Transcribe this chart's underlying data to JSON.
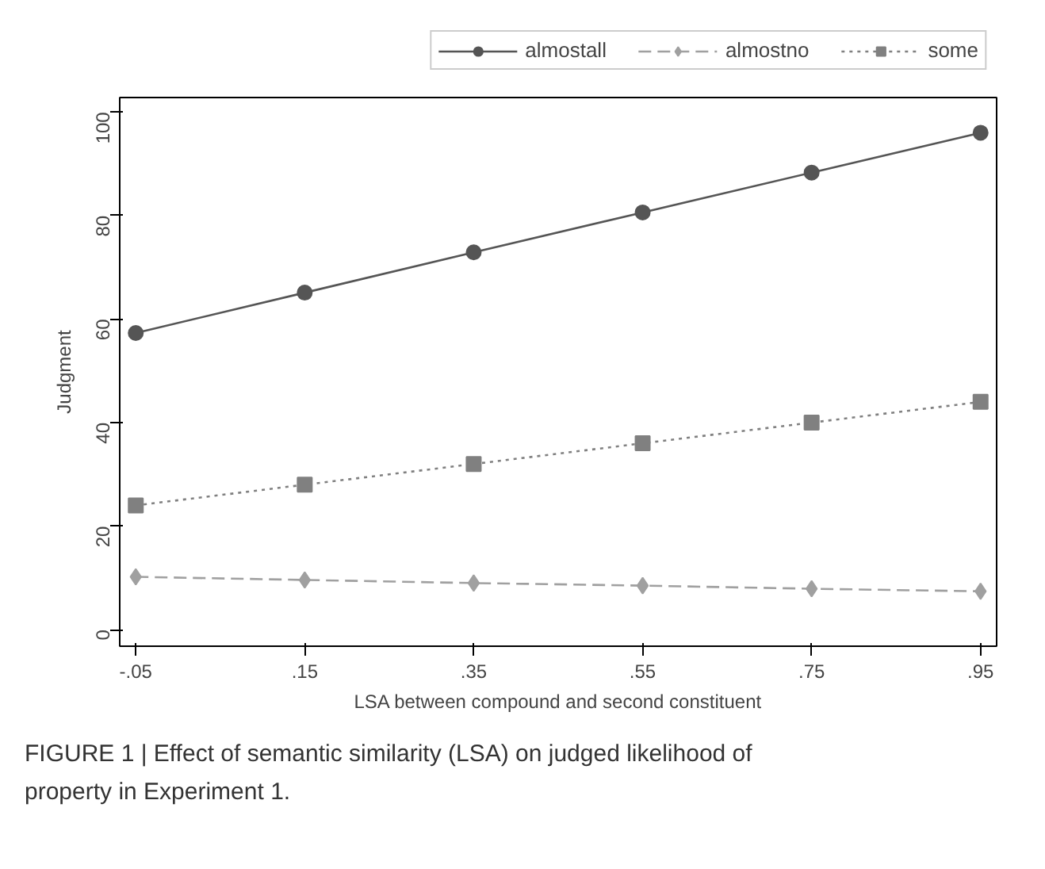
{
  "chart_data": {
    "type": "line",
    "xlabel": "LSA between compound and second constituent",
    "ylabel": "Judgment",
    "x": [
      -0.05,
      0.15,
      0.35,
      0.55,
      0.75,
      0.95
    ],
    "series": [
      {
        "name": "almostall",
        "color": "#555555",
        "values": [
          57.3,
          65.1,
          72.9,
          80.6,
          88.3,
          96.0
        ],
        "marker": "circle",
        "line_style": "solid"
      },
      {
        "name": "almostno",
        "color": "#a0a0a0",
        "values": [
          10.2,
          9.6,
          9.0,
          8.5,
          7.9,
          7.4
        ],
        "marker": "diamond",
        "line_style": "dashed"
      },
      {
        "name": "some",
        "color": "#808080",
        "values": [
          24,
          28,
          32,
          36,
          40,
          44
        ],
        "marker": "square",
        "line_style": "dotted"
      }
    ],
    "xlim": [
      -0.069,
      0.969
    ],
    "ylim": [
      -3.2,
      102.8
    ],
    "xticks": [
      {
        "value": -0.05,
        "label": "-.05"
      },
      {
        "value": 0.15,
        "label": ".15"
      },
      {
        "value": 0.35,
        "label": ".35"
      },
      {
        "value": 0.55,
        "label": ".55"
      },
      {
        "value": 0.75,
        "label": ".75"
      },
      {
        "value": 0.95,
        "label": ".95"
      }
    ],
    "yticks": [
      0,
      20,
      40,
      60,
      80,
      100
    ],
    "grid": false,
    "legend": "top",
    "annotations": [
      "FIGURE 1 | Effect of semantic similarity (LSA) on judged likelihood of property in Experiment 1."
    ]
  }
}
